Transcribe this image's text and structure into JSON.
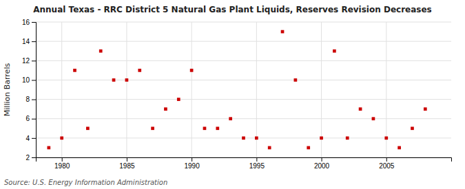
{
  "chart_data": {
    "type": "scatter",
    "title": "Annual Texas - RRC District 5 Natural Gas Plant Liquids, Reserves Revision Decreases",
    "ylabel": "Million Barrels",
    "source": "Source: U.S. Energy Information Administration",
    "x": [
      1979,
      1980,
      1981,
      1982,
      1983,
      1984,
      1985,
      1986,
      1987,
      1988,
      1989,
      1990,
      1991,
      1992,
      1993,
      1994,
      1995,
      1996,
      1997,
      1998,
      1999,
      2000,
      2001,
      2002,
      2003,
      2004,
      2005,
      2006,
      2007,
      2008
    ],
    "values": [
      3,
      4,
      11,
      5,
      13,
      10,
      10,
      11,
      5,
      7,
      8,
      11,
      5,
      5,
      6,
      4,
      4,
      3,
      15,
      10,
      3,
      4,
      13,
      4,
      7,
      6,
      4,
      3,
      5,
      7
    ],
    "color": "#cc0000",
    "marker": "square",
    "xlim": [
      1978,
      2010
    ],
    "ylim": [
      2,
      16
    ],
    "xticks": [
      1980,
      1985,
      1990,
      1995,
      2000,
      2005
    ],
    "yticks": [
      2,
      4,
      6,
      8,
      10,
      12,
      14,
      16
    ],
    "grid": true
  }
}
